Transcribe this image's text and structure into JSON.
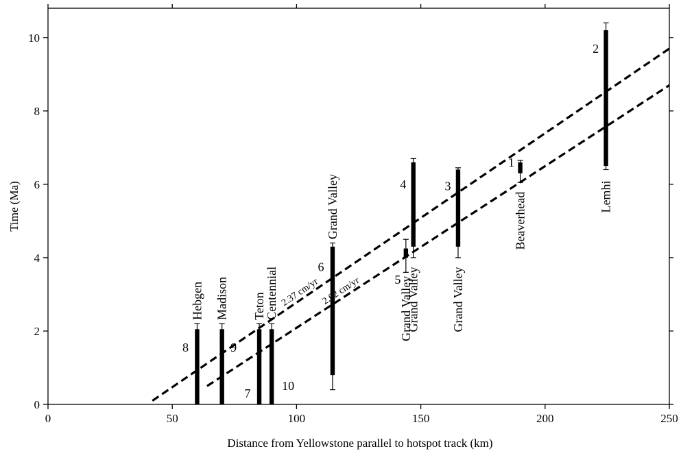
{
  "chart_data": {
    "type": "scatter",
    "xlabel": "Distance from Yellowstone parallel to hotspot track (km)",
    "ylabel": "Time (Ma)",
    "xlim": [
      0,
      250
    ],
    "ylim": [
      0,
      10.8
    ],
    "x_ticks": [
      0,
      50,
      100,
      150,
      200,
      250
    ],
    "y_ticks": [
      0,
      2,
      4,
      6,
      8,
      10
    ],
    "x_tick_labels": [
      "0",
      "50",
      "100",
      "150",
      "200",
      "250"
    ],
    "y_tick_labels": [
      "0",
      "2",
      "4",
      "6",
      "8",
      "10"
    ],
    "grid": false,
    "faults": [
      {
        "number": "8",
        "name": "Hebgen",
        "x": 60,
        "bar_low": 0,
        "bar_high": 2.05,
        "err_low": 0,
        "err_high": 2.2
      },
      {
        "number": "9",
        "name": "Madison",
        "x": 70,
        "bar_low": 0,
        "bar_high": 2.05,
        "err_low": 0,
        "err_high": 2.2
      },
      {
        "number": "7",
        "name": "Teton",
        "x": 85,
        "bar_low": 0,
        "bar_high": 2.05,
        "err_low": 0,
        "err_high": 2.2
      },
      {
        "number": "10",
        "name": "Centennial",
        "x": 90,
        "bar_low": 0,
        "bar_high": 2.05,
        "err_low": 0,
        "err_high": 2.2
      },
      {
        "number": "6",
        "name": "Grand Valley",
        "x": 114.5,
        "bar_low": 0.8,
        "bar_high": 4.3,
        "err_low": 0.4,
        "err_high": 4.4
      },
      {
        "number": "5",
        "name": "Grand Valley",
        "x": 144,
        "bar_low": 4.0,
        "bar_high": 4.25,
        "err_low": 3.6,
        "err_high": 4.5
      },
      {
        "number": "4",
        "name": "Grand Valley",
        "x": 147,
        "bar_low": 4.3,
        "bar_high": 6.6,
        "err_low": 4.0,
        "err_high": 6.7
      },
      {
        "number": "3",
        "name": "Grand Valley",
        "x": 165,
        "bar_low": 4.3,
        "bar_high": 6.4,
        "err_low": 4.0,
        "err_high": 6.45
      },
      {
        "number": "1",
        "name": "Beaverhead",
        "x": 190,
        "bar_low": 6.3,
        "bar_high": 6.6,
        "err_low": 6.05,
        "err_high": 6.65
      },
      {
        "number": "2",
        "name": "Lemhi",
        "x": 224.5,
        "bar_low": 6.5,
        "bar_high": 10.2,
        "err_low": 6.4,
        "err_high": 10.4
      }
    ],
    "series": [
      {
        "name": "2.37 cm/yr",
        "type": "line",
        "style": "dashed",
        "x": [
          42,
          250
        ],
        "y": [
          0.1,
          9.7
        ]
      },
      {
        "name": "2.02 cm/yr",
        "type": "line",
        "style": "dashed",
        "x": [
          64,
          250
        ],
        "y": [
          0.5,
          8.7
        ]
      }
    ]
  }
}
